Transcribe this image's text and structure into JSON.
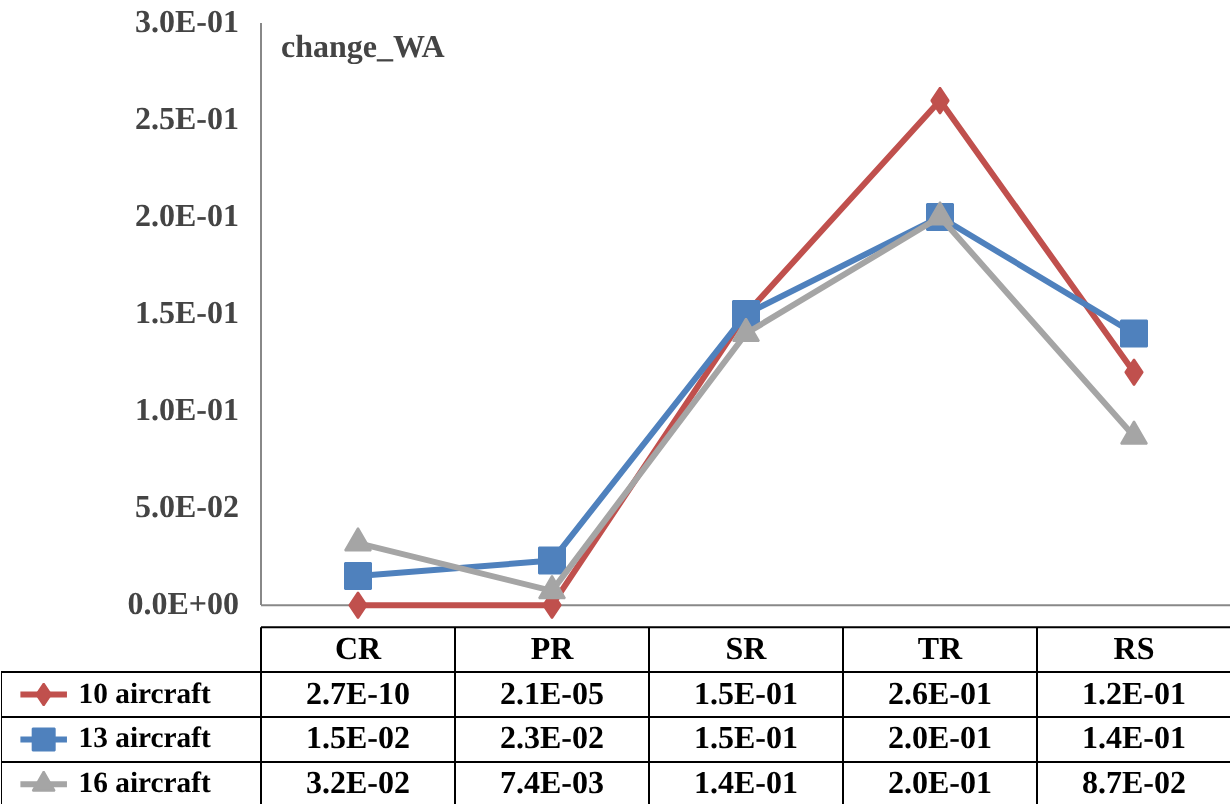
{
  "chart_data": {
    "type": "line",
    "title": "change_WA",
    "categories": [
      "CR",
      "PR",
      "SR",
      "TR",
      "RS"
    ],
    "ylim": [
      0,
      0.3
    ],
    "yticks": [
      {
        "value": 0,
        "label": "0.0E+00"
      },
      {
        "value": 0.05,
        "label": "5.0E-02"
      },
      {
        "value": 0.1,
        "label": "1.0E-01"
      },
      {
        "value": 0.15,
        "label": "1.5E-01"
      },
      {
        "value": 0.2,
        "label": "2.0E-01"
      },
      {
        "value": 0.25,
        "label": "2.5E-01"
      },
      {
        "value": 0.3,
        "label": "3.0E-01"
      }
    ],
    "grid": false,
    "legend": "bottom",
    "line_style": "solid",
    "series": [
      {
        "name": "10 aircraft",
        "color": "#c0504d",
        "marker": "diamond",
        "values": [
          2.7e-10,
          2.1e-05,
          0.15,
          0.26,
          0.12
        ],
        "value_labels": [
          "2.7E-10",
          "2.1E-05",
          "1.5E-01",
          "2.6E-01",
          "1.2E-01"
        ]
      },
      {
        "name": "13 aircraft",
        "color": "#4f81bd",
        "marker": "square",
        "values": [
          0.015,
          0.023,
          0.15,
          0.2,
          0.14
        ],
        "value_labels": [
          "1.5E-02",
          "2.3E-02",
          "1.5E-01",
          "2.0E-01",
          "1.4E-01"
        ]
      },
      {
        "name": "16 aircraft",
        "color": "#a5a5a5",
        "marker": "triangle",
        "values": [
          0.032,
          0.0074,
          0.14,
          0.2,
          0.087
        ],
        "value_labels": [
          "3.2E-02",
          "7.4E-03",
          "1.4E-01",
          "2.0E-01",
          "8.7E-02"
        ]
      }
    ]
  }
}
